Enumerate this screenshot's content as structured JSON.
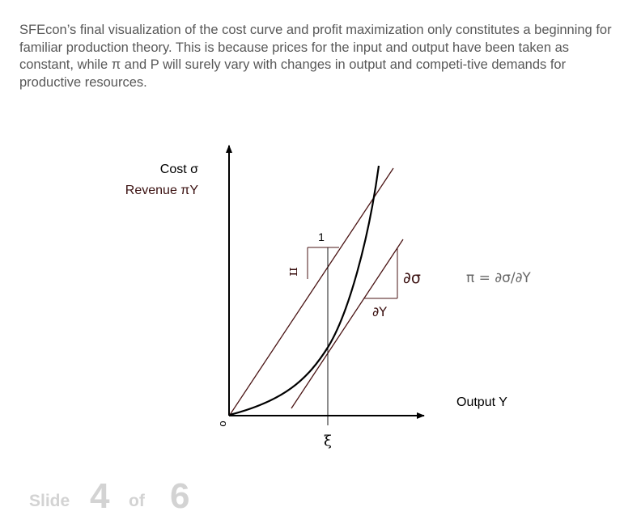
{
  "intro_text": "SFEcon’s final visualization of the cost curve and profit maximization only constitutes a beginning for familiar production theory. This is because prices for the input and output have been taken as constant, while π and P will surely vary with changes in output and competi-tive demands for productive resources.",
  "diagram": {
    "y_axis_label_cost": "Cost σ",
    "y_axis_label_revenue": "Revenue πY",
    "x_axis_label": "Output Y",
    "origin_label": "o",
    "optimum_label": "ξ",
    "slope_run_label": "1",
    "slope_rise_label": "π",
    "tangent_rise_label": "∂σ",
    "tangent_run_label": "∂Y",
    "equation": "π = ∂σ/∂Y",
    "colors": {
      "axes": "#000000",
      "cost_curve": "#000000",
      "lines": "#4a1414",
      "text_dark": "#000000",
      "text_accent": "#3a1010",
      "equation": "#666666"
    }
  },
  "footer": {
    "slide_word": "Slide",
    "slide_number": "4",
    "of_word": "of",
    "slide_total": "6",
    "color": "#d3d3d3"
  }
}
